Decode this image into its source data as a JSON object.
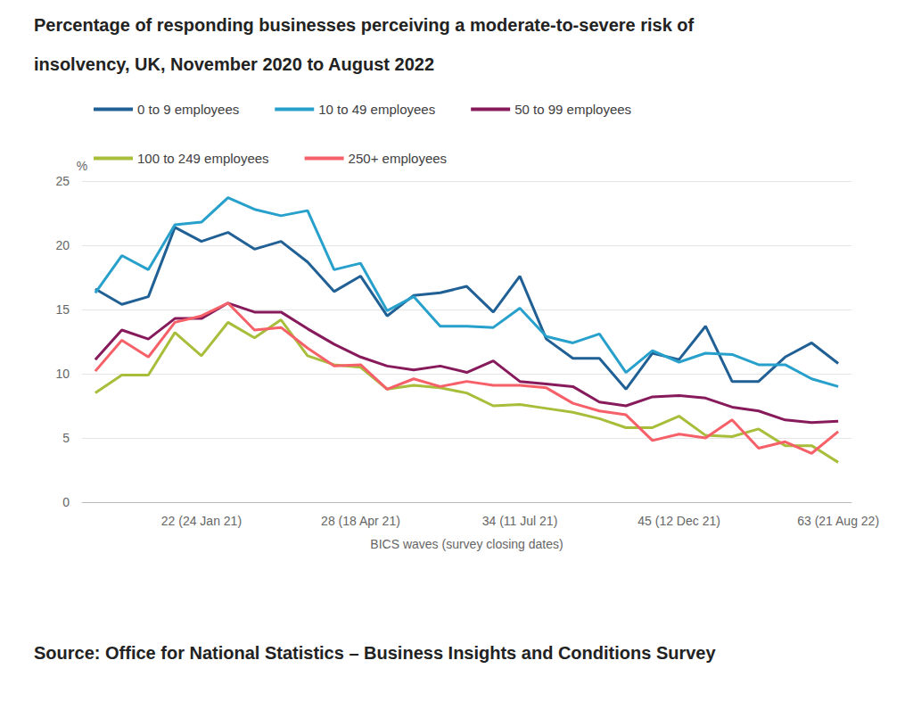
{
  "chart_data": {
    "type": "line",
    "title": "Percentage of responding businesses perceiving a moderate-to-severe risk of insolvency, UK, November 2020 to August 2022",
    "source": "Source: Office for National Statistics – Business Insights and Conditions Survey",
    "x_label": "BICS waves (survey closing dates)",
    "y_label": "%",
    "categories": [
      null,
      null,
      null,
      null,
      "22 (24 Jan 21)",
      null,
      null,
      null,
      null,
      null,
      "28 (18 Apr 21)",
      null,
      null,
      null,
      null,
      null,
      "34 (11 Jul 21)",
      null,
      null,
      null,
      null,
      null,
      "45 (12 Dec 21)",
      null,
      null,
      null,
      null,
      null,
      "63 (21 Aug 22)"
    ],
    "series": [
      {
        "name": "0 to 9 employees",
        "color": "#206095",
        "values": [
          16.6,
          15.4,
          16.0,
          21.4,
          20.3,
          21.0,
          19.7,
          20.3,
          18.7,
          16.4,
          17.6,
          14.5,
          16.1,
          16.3,
          16.8,
          14.8,
          17.6,
          12.7,
          11.2,
          11.2,
          8.8,
          11.6,
          11.1,
          13.7,
          9.4,
          9.4,
          11.3,
          12.4,
          10.8
        ]
      },
      {
        "name": "10 to 49 employees",
        "color": "#27a0cc",
        "values": [
          16.3,
          19.2,
          18.1,
          21.6,
          21.8,
          23.7,
          22.8,
          22.3,
          22.7,
          18.1,
          18.6,
          14.9,
          16.0,
          13.7,
          13.7,
          13.6,
          15.1,
          12.9,
          12.4,
          13.1,
          10.1,
          11.8,
          10.9,
          11.6,
          11.5,
          10.7,
          10.7,
          9.6,
          9.0
        ]
      },
      {
        "name": "50 to 99 employees",
        "color": "#871a5b",
        "values": [
          11.1,
          13.4,
          12.7,
          14.3,
          14.3,
          15.5,
          14.8,
          14.8,
          13.5,
          12.3,
          11.3,
          10.6,
          10.3,
          10.6,
          10.1,
          11.0,
          9.4,
          9.2,
          9.0,
          7.8,
          7.5,
          8.2,
          8.3,
          8.1,
          7.4,
          7.1,
          6.4,
          6.2,
          6.3
        ]
      },
      {
        "name": "100 to 249 employees",
        "color": "#a8bd3a",
        "values": [
          8.5,
          9.9,
          9.9,
          13.2,
          11.4,
          14.0,
          12.8,
          14.2,
          11.4,
          10.7,
          10.5,
          8.8,
          9.1,
          8.9,
          8.5,
          7.5,
          7.6,
          7.3,
          7.0,
          6.5,
          5.8,
          5.8,
          6.7,
          5.2,
          5.1,
          5.7,
          4.4,
          4.4,
          3.1
        ]
      },
      {
        "name": "250+ employees",
        "color": "#f66068",
        "values": [
          10.2,
          12.6,
          11.3,
          14.0,
          14.5,
          15.5,
          13.4,
          13.6,
          12.0,
          10.6,
          10.7,
          8.8,
          9.6,
          9.0,
          9.4,
          9.1,
          9.1,
          8.9,
          7.7,
          7.1,
          6.8,
          4.8,
          5.3,
          5.0,
          6.4,
          4.2,
          4.7,
          3.8,
          5.5
        ]
      }
    ],
    "ylim": [
      0,
      25
    ],
    "yticks": [
      0,
      5,
      10,
      15,
      20,
      25
    ],
    "grid": true,
    "legend": "top"
  }
}
